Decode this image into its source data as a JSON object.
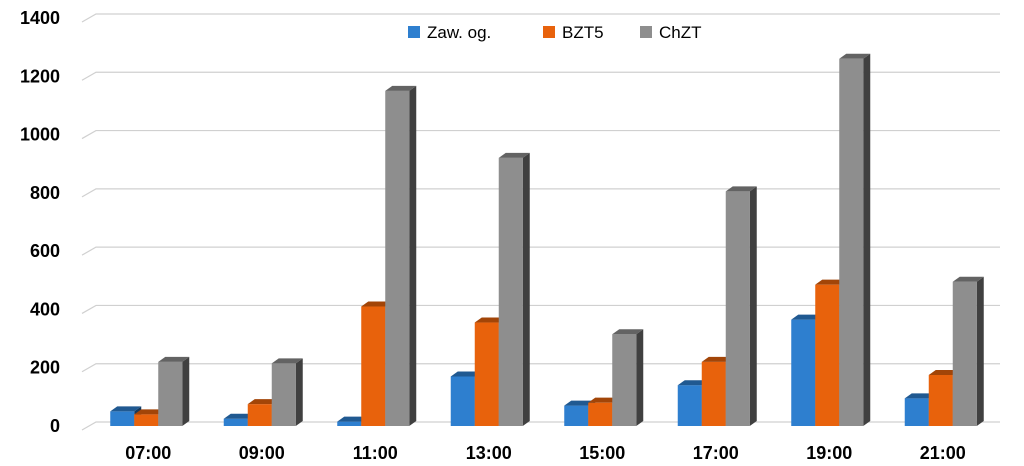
{
  "chart_data": {
    "type": "bar",
    "categories": [
      "07:00",
      "09:00",
      "11:00",
      "13:00",
      "15:00",
      "17:00",
      "19:00",
      "21:00"
    ],
    "series": [
      {
        "name": "Zaw. og.",
        "values": [
          50,
          25,
          15,
          170,
          70,
          140,
          365,
          95
        ],
        "color": "#2e7fcf"
      },
      {
        "name": "BZT5",
        "values": [
          40,
          75,
          410,
          355,
          80,
          220,
          485,
          175
        ],
        "color": "#e8620c"
      },
      {
        "name": "ChZT",
        "values": [
          220,
          215,
          1150,
          920,
          315,
          805,
          1260,
          495
        ],
        "color": "#8e8e8e"
      }
    ],
    "ylim": [
      0,
      1400
    ],
    "yticks": [
      "0",
      "200",
      "400",
      "600",
      "800",
      "1000",
      "1200",
      "1400"
    ],
    "grid": true,
    "legend_position": "top"
  }
}
